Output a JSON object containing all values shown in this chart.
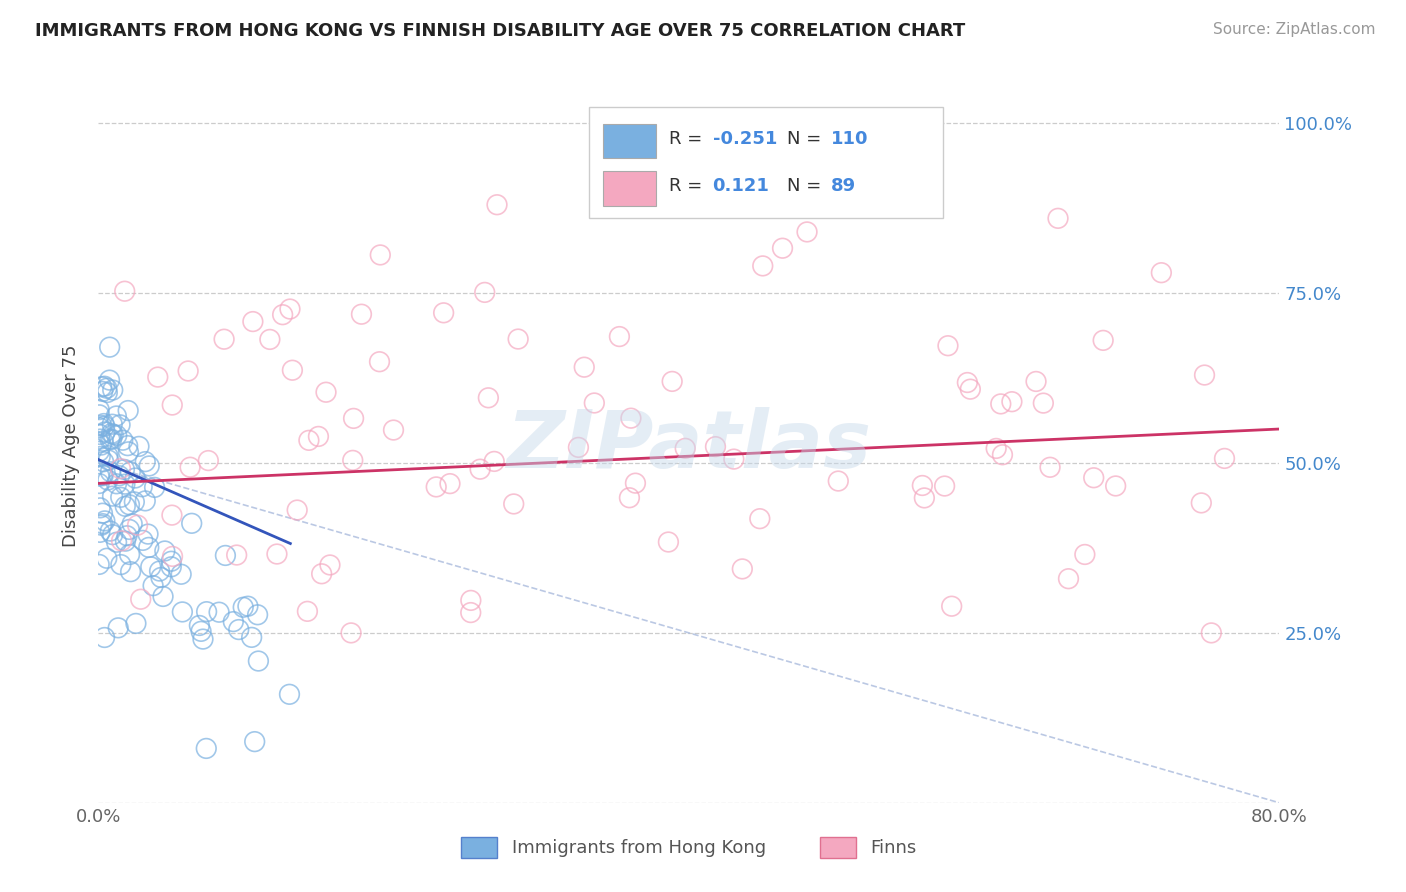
{
  "title": "IMMIGRANTS FROM HONG KONG VS FINNISH DISABILITY AGE OVER 75 CORRELATION CHART",
  "source_text": "Source: ZipAtlas.com",
  "ylabel": "Disability Age Over 75",
  "xlim": [
    0.0,
    80.0
  ],
  "ylim": [
    0.0,
    105.0
  ],
  "ytick_vals": [
    0,
    25,
    50,
    75,
    100
  ],
  "yticklabels_right": [
    "",
    "25.0%",
    "50.0%",
    "75.0%",
    "100.0%"
  ],
  "xtick_vals": [
    0,
    20,
    40,
    60,
    80
  ],
  "xticklabels": [
    "0.0%",
    "",
    "",
    "",
    "80.0%"
  ],
  "grid_color": "#cccccc",
  "background_color": "#ffffff",
  "r_hk": -0.251,
  "n_hk": 110,
  "r_finn": 0.121,
  "n_finn": 89,
  "color_hk": "#7ab0e0",
  "color_hk_edge": "#5580cc",
  "color_finn": "#f4a8c0",
  "color_finn_edge": "#e07090",
  "color_hk_line": "#3355bb",
  "color_finn_line": "#cc3366",
  "color_gray_dashed": "#aabbdd",
  "title_color": "#222222",
  "title_fontsize": 13,
  "tick_right_color": "#4488cc",
  "xtick_color": "#666666",
  "watermark_color": "#c5d8ea",
  "source_color": "#999999"
}
